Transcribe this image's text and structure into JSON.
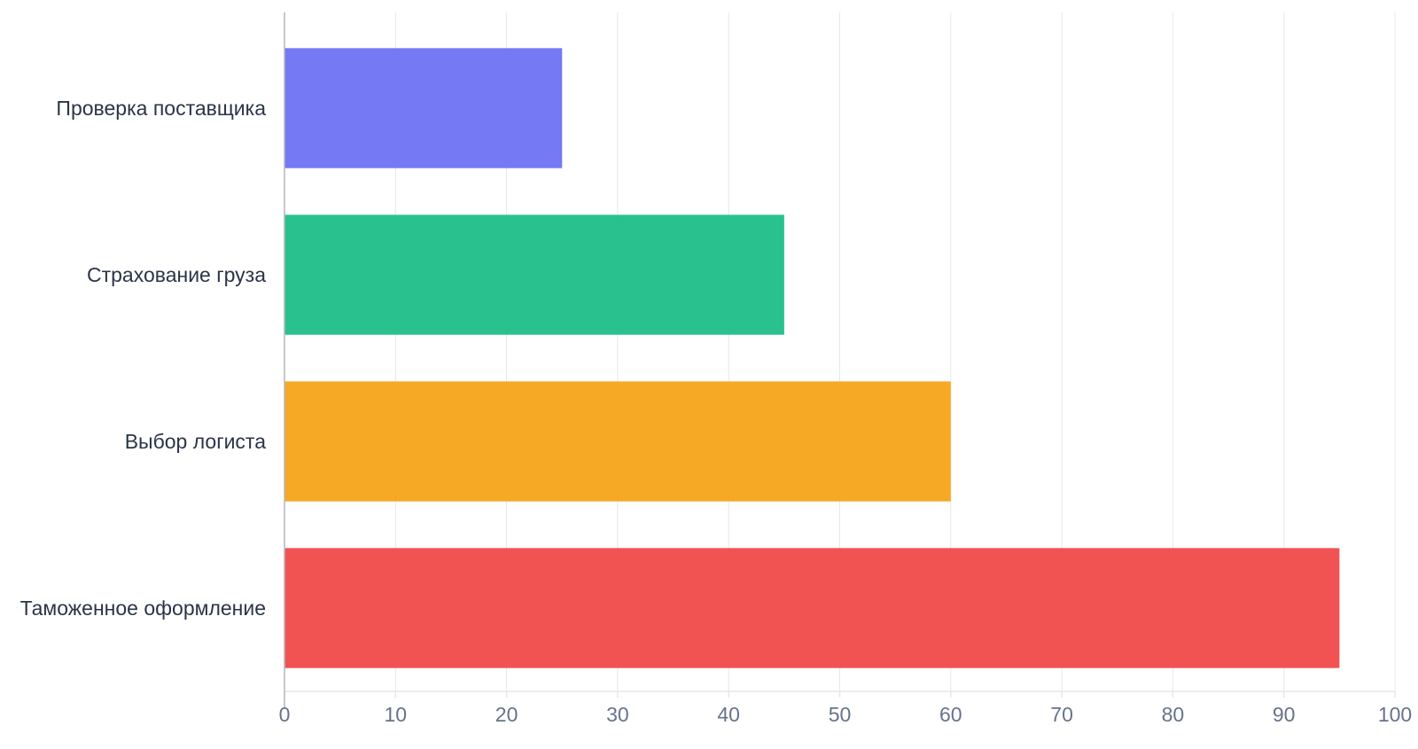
{
  "chart_data": {
    "type": "bar",
    "orientation": "horizontal",
    "categories": [
      "Проверка поставщика",
      "Страхование груза",
      "Выбор логиста",
      "Таможенное оформление"
    ],
    "values": [
      25,
      45,
      60,
      95
    ],
    "colors": [
      "#6e72f3",
      "#1dbe87",
      "#f5a418",
      "#f04a4a"
    ],
    "xlim": [
      0,
      100
    ],
    "x_ticks": [
      "0",
      "10",
      "20",
      "30",
      "40",
      "50",
      "60",
      "70",
      "80",
      "90",
      "100"
    ],
    "grid": true,
    "legend": "none",
    "title": "",
    "xlabel": "",
    "ylabel": ""
  }
}
